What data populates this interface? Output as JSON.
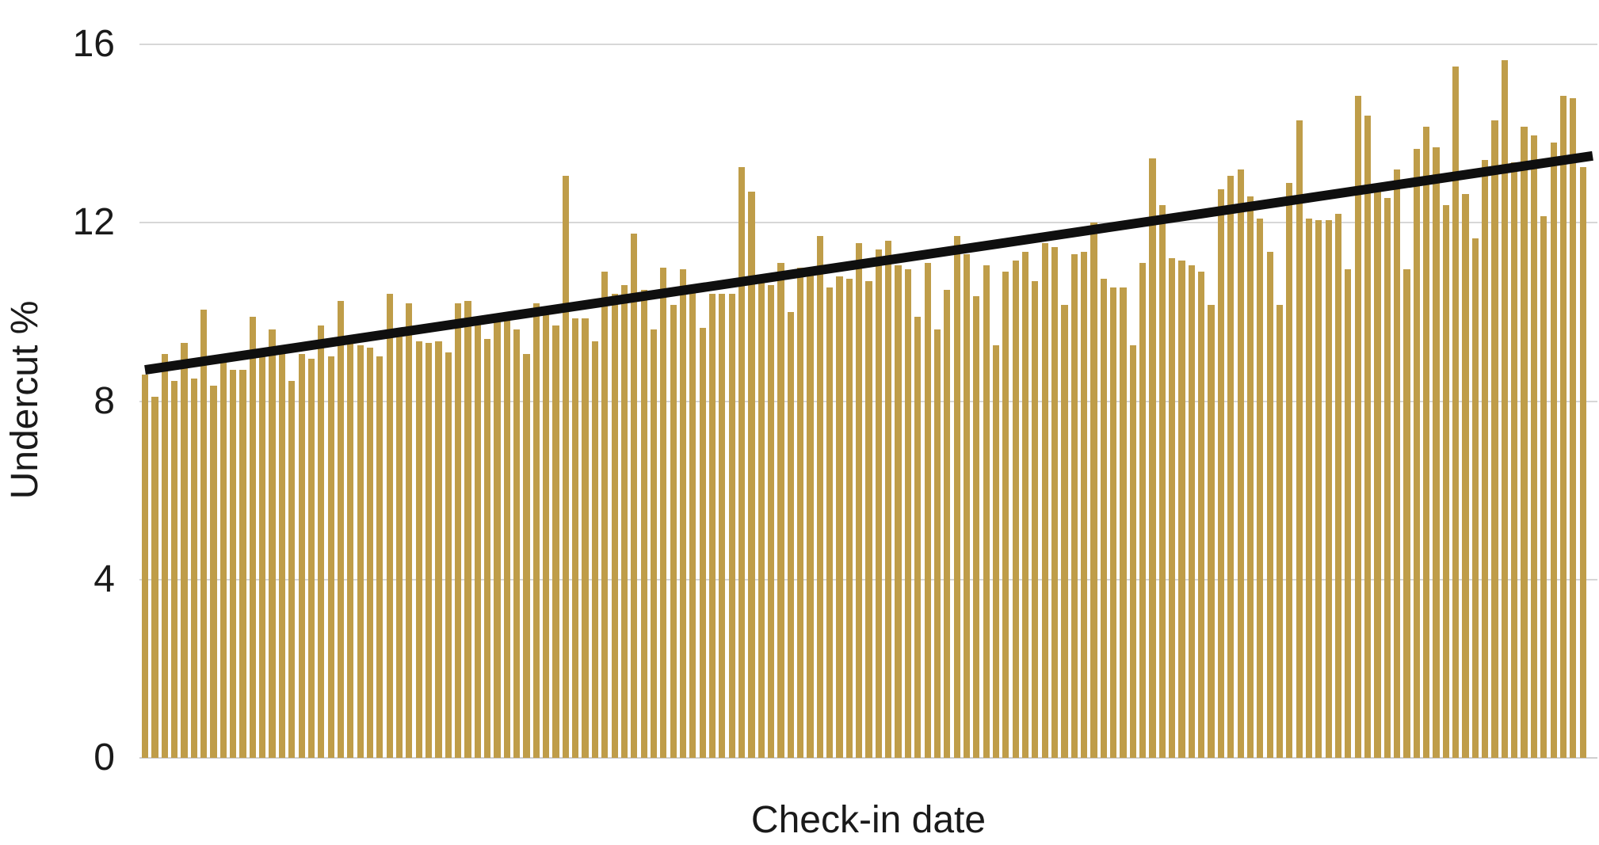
{
  "chart_data": {
    "type": "bar",
    "title": "",
    "xlabel": "Check-in date",
    "ylabel": "Undercut %",
    "ylim": [
      0,
      16
    ],
    "yticks": [
      0,
      4,
      8,
      12,
      16
    ],
    "ytick_labels": [
      "0",
      "4",
      "8",
      "12",
      "16"
    ],
    "x_axis_tick_labels_shown": false,
    "grid": true,
    "legend_shown": false,
    "bar_color": "#BF9D49",
    "gridline_color": "#d7d7d7",
    "text_color": "#1a1a1a",
    "background_color": "#ffffff",
    "trendline": {
      "color": "#0f0f0f",
      "thickness_px": 12,
      "start_value": 8.7,
      "end_value": 13.5
    },
    "values": [
      8.6,
      8.1,
      9.05,
      8.45,
      9.3,
      8.5,
      10.05,
      8.35,
      8.9,
      8.7,
      8.7,
      9.9,
      9.05,
      9.6,
      9.25,
      8.45,
      9.05,
      8.95,
      9.7,
      9.0,
      10.25,
      9.4,
      9.25,
      9.2,
      9.0,
      10.4,
      9.6,
      10.2,
      9.35,
      9.3,
      9.35,
      9.1,
      10.2,
      10.25,
      9.9,
      9.4,
      9.9,
      10.0,
      9.6,
      9.05,
      10.2,
      10.05,
      9.7,
      13.05,
      9.85,
      9.85,
      9.35,
      10.9,
      10.4,
      10.6,
      11.75,
      10.5,
      9.6,
      11.0,
      10.15,
      10.95,
      10.6,
      9.65,
      10.4,
      10.4,
      10.4,
      13.25,
      12.7,
      10.7,
      10.6,
      11.1,
      10.0,
      11.0,
      11.0,
      11.7,
      10.55,
      10.8,
      10.75,
      11.55,
      10.7,
      11.4,
      11.6,
      11.05,
      10.95,
      9.9,
      11.1,
      9.6,
      10.5,
      11.7,
      11.3,
      10.35,
      11.05,
      9.25,
      10.9,
      11.15,
      11.35,
      10.7,
      11.55,
      11.45,
      10.15,
      11.3,
      11.35,
      12.0,
      10.75,
      10.55,
      10.55,
      9.25,
      11.1,
      13.45,
      12.4,
      11.2,
      11.15,
      11.05,
      10.9,
      10.15,
      12.75,
      13.05,
      13.2,
      12.6,
      12.1,
      11.35,
      10.15,
      12.9,
      14.3,
      12.1,
      12.05,
      12.05,
      12.2,
      10.95,
      14.85,
      14.4,
      12.8,
      12.55,
      13.2,
      10.95,
      13.65,
      14.15,
      13.7,
      12.4,
      15.5,
      12.65,
      11.65,
      13.4,
      14.3,
      15.65,
      13.35,
      14.15,
      13.95,
      12.15,
      13.8,
      14.85,
      14.8,
      13.25
    ]
  }
}
